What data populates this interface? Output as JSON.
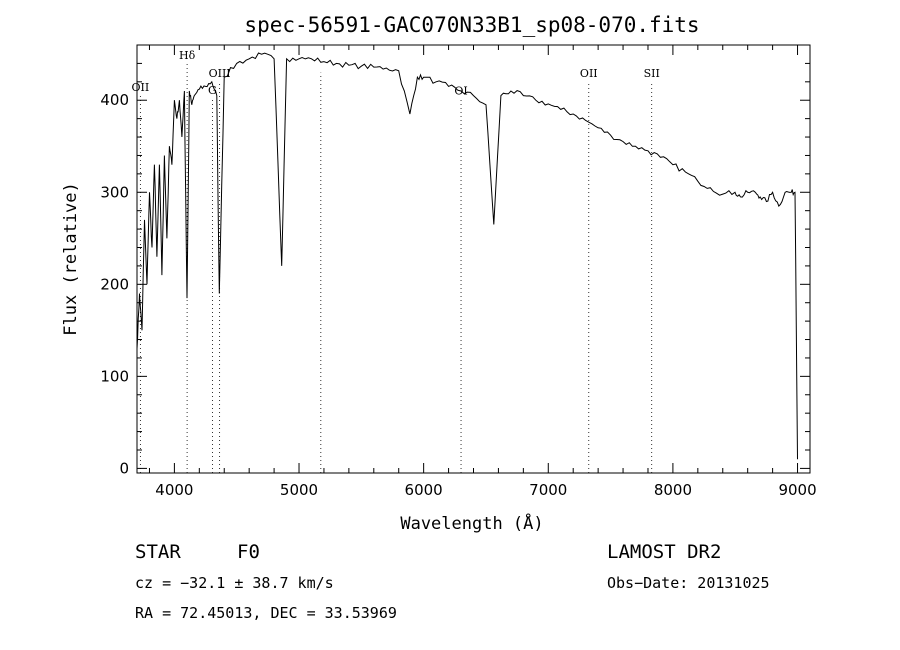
{
  "chart_data": {
    "type": "line",
    "title": "spec-56591-GAC070N33B1_sp08-070.fits",
    "xlabel": "Wavelength (Å)",
    "ylabel": "Flux (relative)",
    "xlim": [
      3700,
      9100
    ],
    "ylim": [
      -5,
      460
    ],
    "xticks": [
      4000,
      5000,
      6000,
      7000,
      8000,
      9000
    ],
    "yticks": [
      0,
      100,
      200,
      300,
      400
    ],
    "lines": [
      {
        "label": "OII",
        "wave": 3727,
        "label_y": 410
      },
      {
        "label": "Hδ",
        "wave": 4102,
        "label_y": 445
      },
      {
        "label": "G",
        "wave": 4305,
        "label_y": 407
      },
      {
        "label": "OIII",
        "wave": 4363,
        "label_y": 425
      },
      {
        "label": "",
        "wave": 5175,
        "label_y": 0
      },
      {
        "label": "OI",
        "wave": 6300,
        "label_y": 406
      },
      {
        "label": "OII",
        "wave": 7325,
        "label_y": 425
      },
      {
        "label": "SII",
        "wave": 7830,
        "label_y": 425
      }
    ],
    "spectrum": {
      "x": [
        3700,
        3720,
        3740,
        3760,
        3780,
        3800,
        3820,
        3840,
        3860,
        3880,
        3900,
        3920,
        3940,
        3960,
        3980,
        4000,
        4020,
        4040,
        4060,
        4080,
        4101,
        4120,
        4140,
        4160,
        4200,
        4250,
        4300,
        4340,
        4360,
        4400,
        4500,
        4600,
        4700,
        4800,
        4861,
        4900,
        5000,
        5100,
        5200,
        5300,
        5400,
        5500,
        5600,
        5700,
        5800,
        5890,
        5950,
        6000,
        6100,
        6200,
        6300,
        6400,
        6500,
        6563,
        6620,
        6700,
        6800,
        6900,
        7000,
        7100,
        7200,
        7300,
        7400,
        7500,
        7600,
        7700,
        7800,
        7900,
        8000,
        8100,
        8200,
        8300,
        8400,
        8498,
        8542,
        8600,
        8662,
        8700,
        8750,
        8800,
        8850,
        8900,
        8950,
        8980,
        9000
      ],
      "y": [
        130,
        190,
        150,
        270,
        200,
        300,
        240,
        330,
        230,
        330,
        210,
        340,
        250,
        350,
        330,
        400,
        380,
        400,
        360,
        410,
        185,
        410,
        395,
        405,
        412,
        415,
        420,
        405,
        190,
        425,
        440,
        445,
        450,
        445,
        220,
        445,
        445,
        445,
        442,
        440,
        438,
        437,
        436,
        435,
        432,
        385,
        425,
        425,
        420,
        415,
        410,
        405,
        395,
        265,
        405,
        410,
        405,
        400,
        396,
        390,
        385,
        378,
        370,
        362,
        355,
        350,
        345,
        338,
        330,
        322,
        312,
        305,
        298,
        300,
        295,
        300,
        300,
        295,
        290,
        300,
        285,
        300,
        300,
        300,
        10
      ]
    }
  },
  "info": {
    "class_text": "STAR",
    "subclass_text": "F0",
    "survey_text": "LAMOST DR2",
    "cz_text": "cz = −32.1 ± 38.7 km/s",
    "obsdate_text": "Obs−Date: 20131025",
    "radec_text": "RA =  72.45013, DEC =  33.53969"
  }
}
